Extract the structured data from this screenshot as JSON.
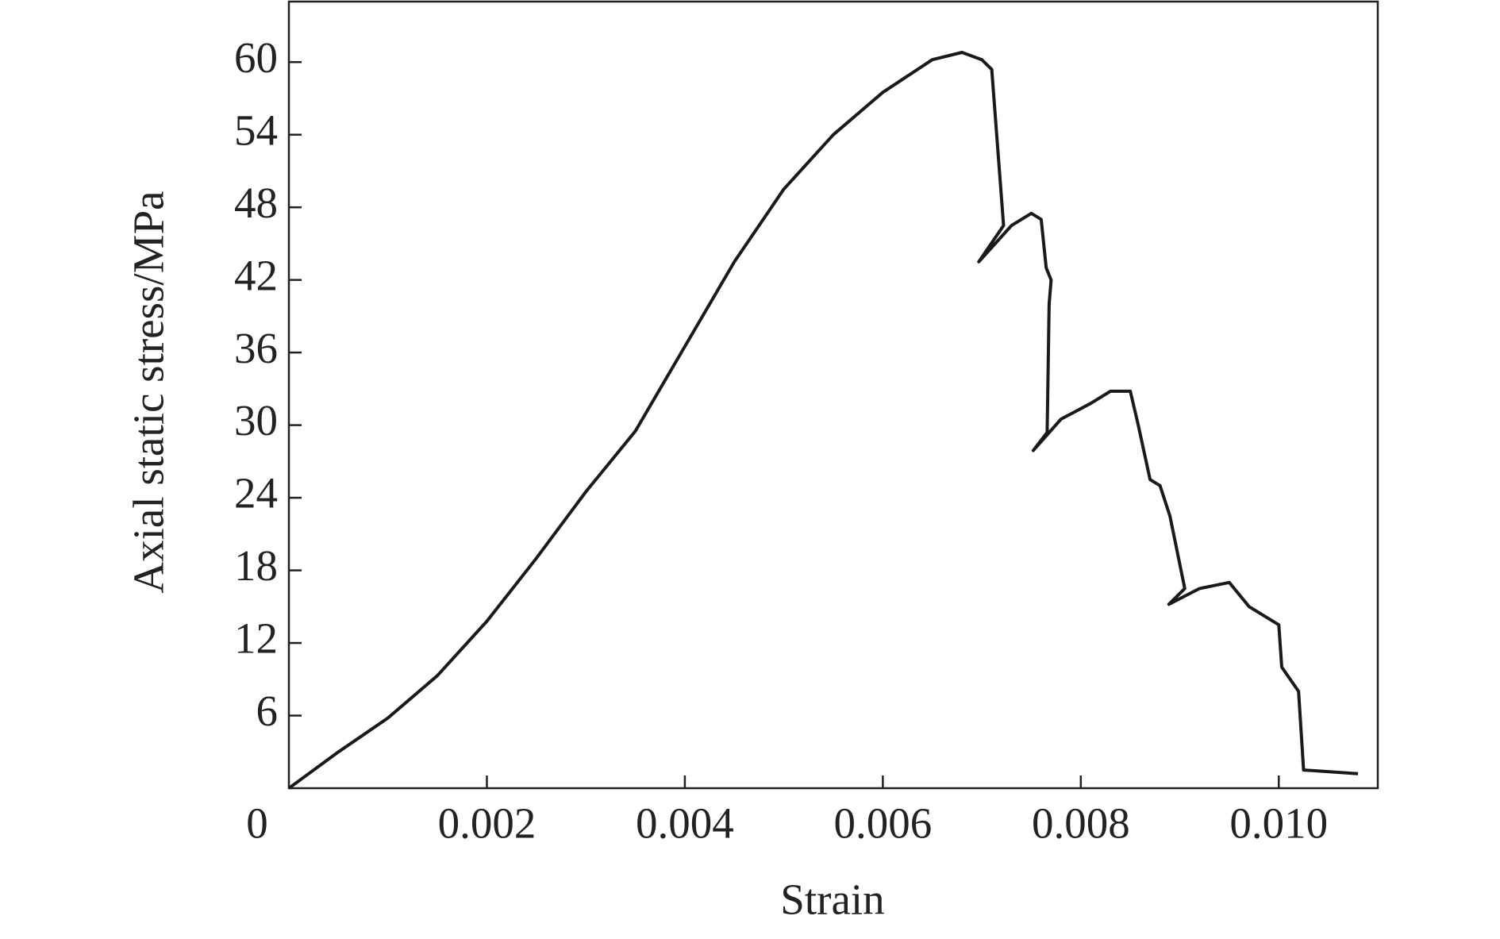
{
  "chart_data": {
    "type": "line",
    "xlabel": "Strain",
    "ylabel": "Axial static stress/MPa",
    "x": [
      0,
      0.0005,
      0.001,
      0.0015,
      0.002,
      0.0025,
      0.003,
      0.0035,
      0.004,
      0.0045,
      0.005,
      0.0055,
      0.006,
      0.0065,
      0.0068,
      0.007,
      0.0071,
      0.00722,
      0.00697,
      0.0073,
      0.0075,
      0.0076,
      0.00765,
      0.0077,
      0.00768,
      0.00766,
      0.00752,
      0.0078,
      0.0081,
      0.0083,
      0.0085,
      0.00858,
      0.0087,
      0.0088,
      0.0089,
      0.00905,
      0.00889,
      0.0092,
      0.0095,
      0.0097,
      0.01,
      0.01003,
      0.0102,
      0.01025,
      0.0108
    ],
    "values": [
      0,
      3,
      5.8,
      9.3,
      13.8,
      19,
      24.5,
      29.5,
      36.5,
      43.5,
      49.5,
      54,
      57.5,
      60.2,
      60.8,
      60.2,
      59.4,
      46.5,
      43.5,
      46.5,
      47.5,
      47,
      43,
      42,
      40,
      29.4,
      27.9,
      30.5,
      31.8,
      32.8,
      32.8,
      30,
      25.5,
      25,
      22.5,
      16.5,
      15.2,
      16.5,
      17,
      15,
      13.5,
      10,
      8,
      1.5,
      1.2
    ],
    "color": "#1a1a1a",
    "xlim": [
      0,
      0.011
    ],
    "ylim": [
      0,
      65
    ],
    "xticks": [
      0,
      0.002,
      0.004,
      0.006,
      0.008,
      {
        "value": 0.01,
        "label": "0.010"
      }
    ],
    "yticks": [
      6,
      12,
      18,
      24,
      30,
      36,
      42,
      48,
      54,
      60
    ]
  }
}
